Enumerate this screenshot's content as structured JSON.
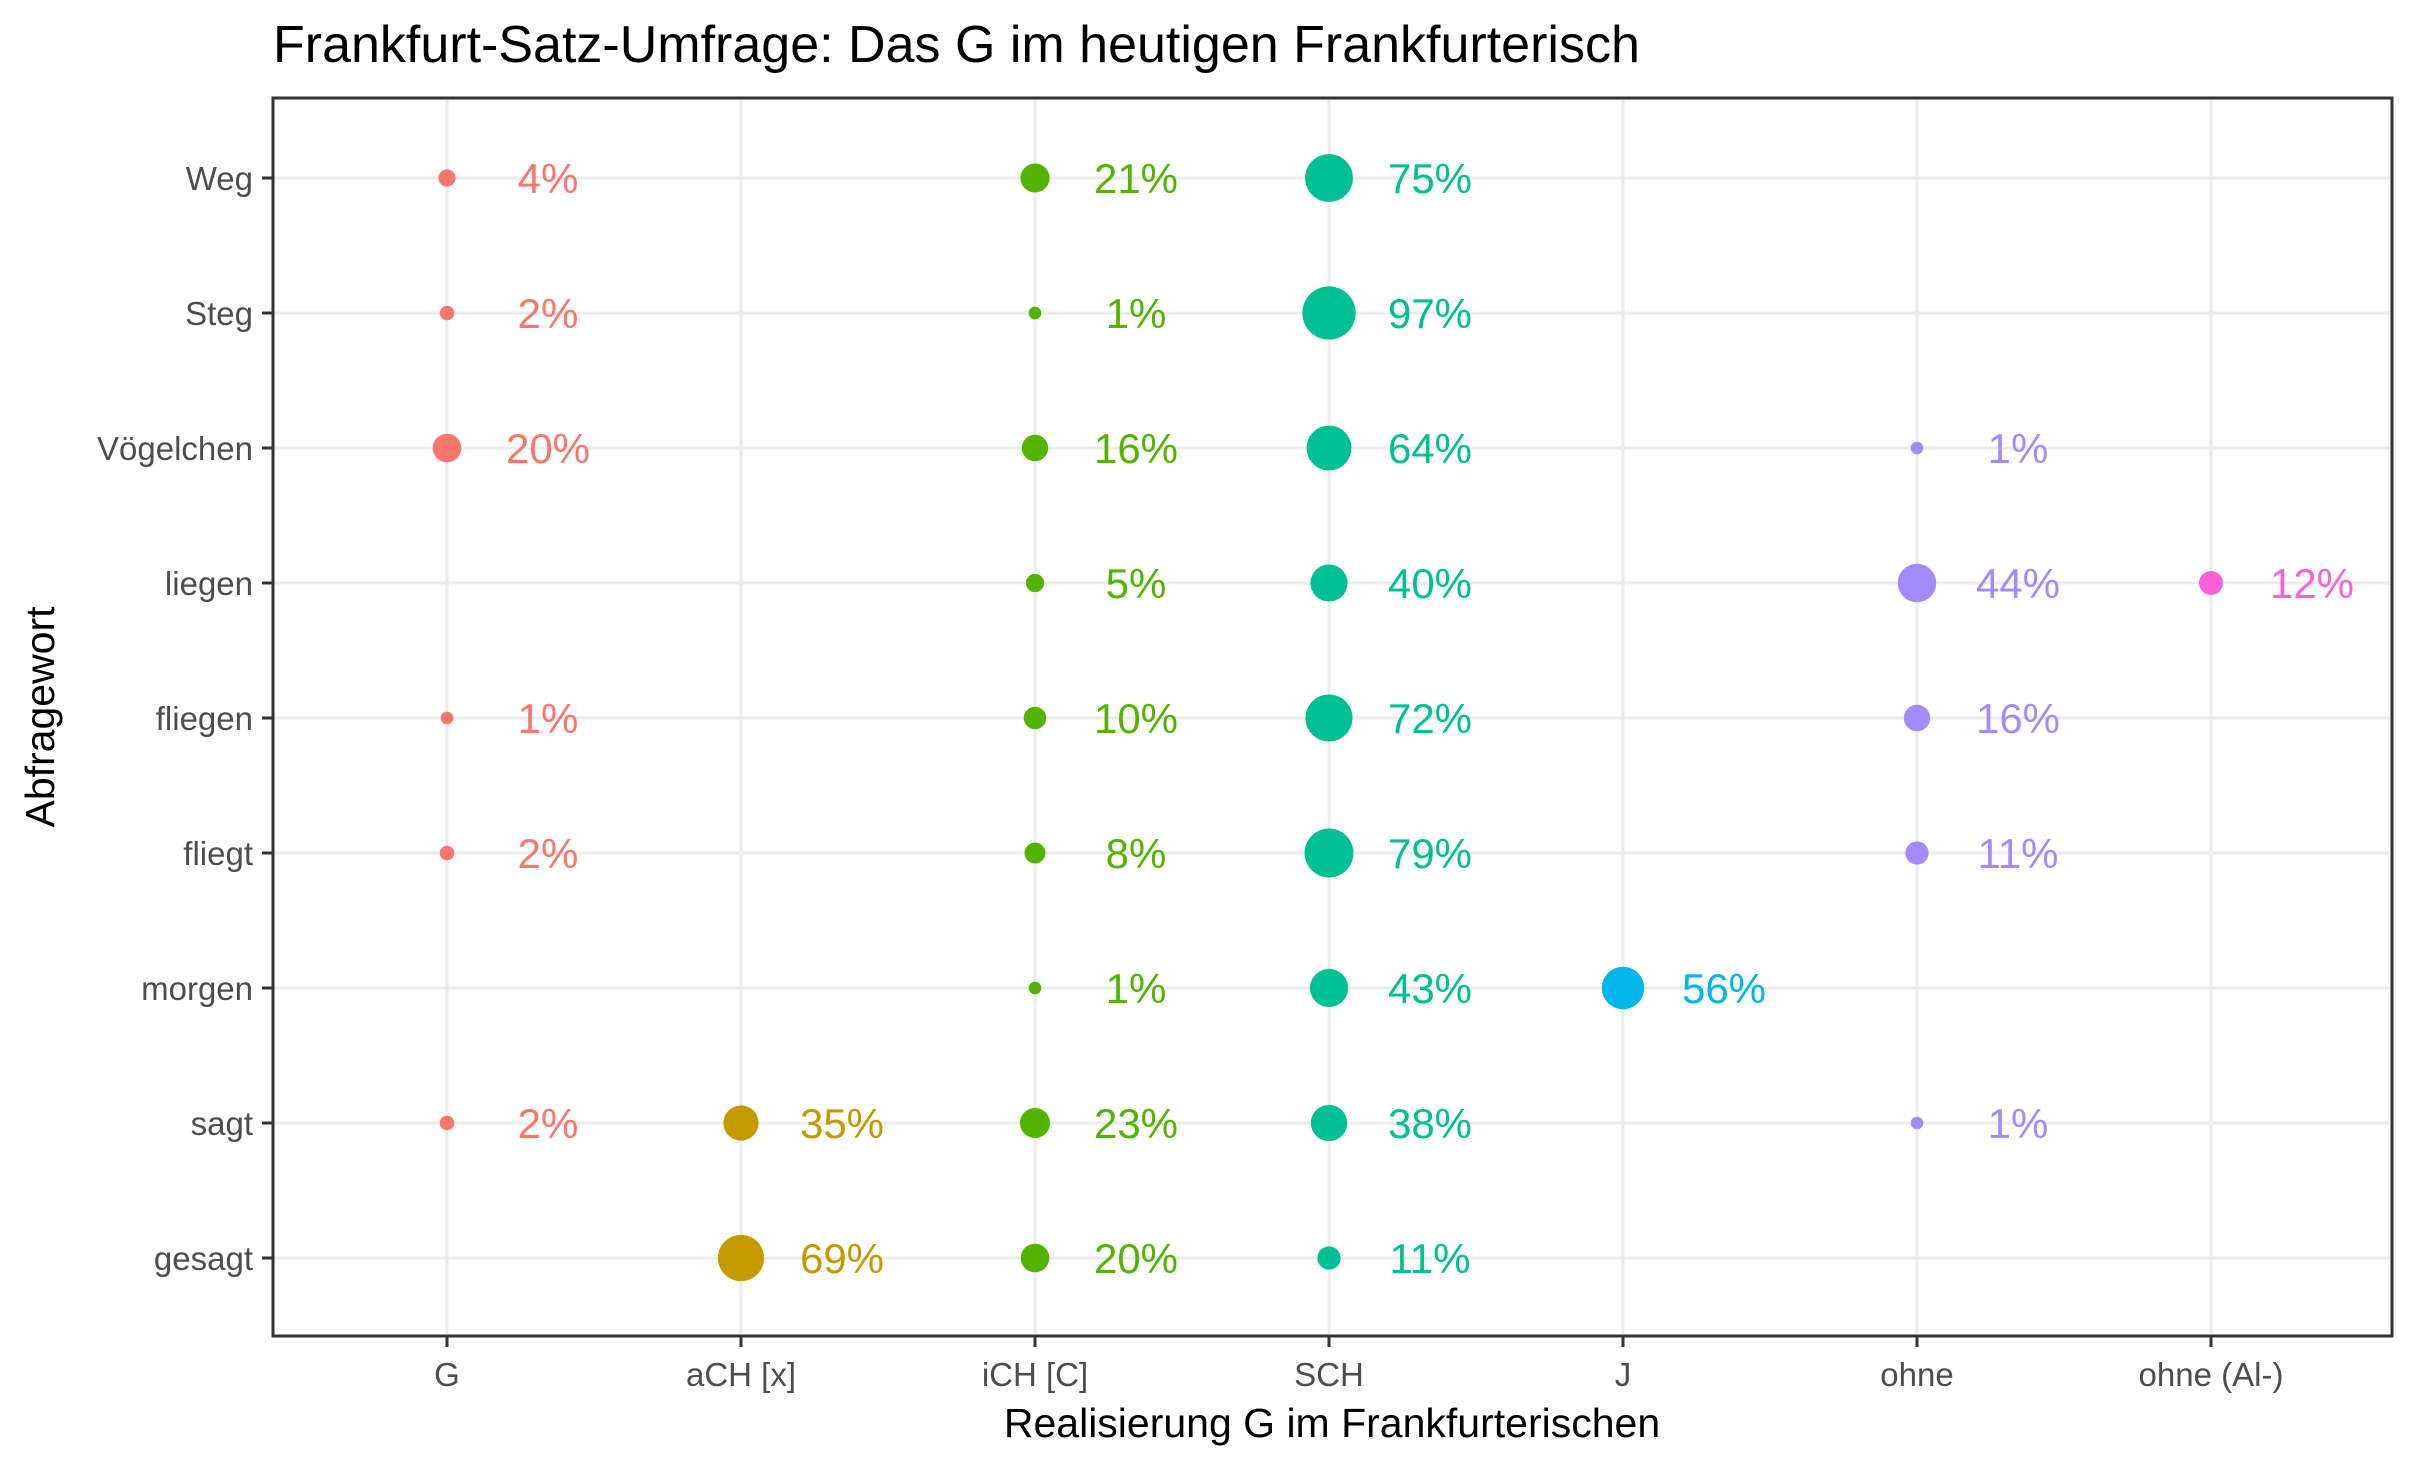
{
  "chart_data": {
    "type": "scatter",
    "title": "Frankfurt-Satz-Umfrage: Das G im heutigen Frankfurterisch",
    "xlabel": "Realisierung G im Frankfurterischen",
    "ylabel": "Abfragewort",
    "grid": true,
    "legend": "none",
    "x_categories": [
      "G",
      "aCH [x]",
      "iCH [C]",
      "SCH",
      "J",
      "ohne",
      "ohne (Al-)"
    ],
    "y_categories": [
      "Weg",
      "Steg",
      "Vögelchen",
      "liegen",
      "fliegen",
      "fliegt",
      "morgen",
      "sagt",
      "gesagt"
    ],
    "colors": {
      "G": "#F8766D",
      "aCH [x]": "#C49A00",
      "iCH [C]": "#53B400",
      "SCH": "#00C094",
      "J": "#00B6EB",
      "ohne": "#A58AFF",
      "ohne (Al-)": "#FB61D7"
    },
    "points": [
      {
        "word": "Weg",
        "realization": "G",
        "value": 4,
        "label": "4%"
      },
      {
        "word": "Weg",
        "realization": "iCH [C]",
        "value": 21,
        "label": "21%"
      },
      {
        "word": "Weg",
        "realization": "SCH",
        "value": 75,
        "label": "75%"
      },
      {
        "word": "Steg",
        "realization": "G",
        "value": 2,
        "label": "2%"
      },
      {
        "word": "Steg",
        "realization": "iCH [C]",
        "value": 1,
        "label": "1%"
      },
      {
        "word": "Steg",
        "realization": "SCH",
        "value": 97,
        "label": "97%"
      },
      {
        "word": "Vögelchen",
        "realization": "G",
        "value": 20,
        "label": "20%"
      },
      {
        "word": "Vögelchen",
        "realization": "iCH [C]",
        "value": 16,
        "label": "16%"
      },
      {
        "word": "Vögelchen",
        "realization": "SCH",
        "value": 64,
        "label": "64%"
      },
      {
        "word": "Vögelchen",
        "realization": "ohne",
        "value": 1,
        "label": "1%"
      },
      {
        "word": "liegen",
        "realization": "iCH [C]",
        "value": 5,
        "label": "5%"
      },
      {
        "word": "liegen",
        "realization": "SCH",
        "value": 40,
        "label": "40%"
      },
      {
        "word": "liegen",
        "realization": "ohne",
        "value": 44,
        "label": "44%"
      },
      {
        "word": "liegen",
        "realization": "ohne (Al-)",
        "value": 12,
        "label": "12%"
      },
      {
        "word": "fliegen",
        "realization": "G",
        "value": 1,
        "label": "1%"
      },
      {
        "word": "fliegen",
        "realization": "iCH [C]",
        "value": 10,
        "label": "10%"
      },
      {
        "word": "fliegen",
        "realization": "SCH",
        "value": 72,
        "label": "72%"
      },
      {
        "word": "fliegen",
        "realization": "ohne",
        "value": 16,
        "label": "16%"
      },
      {
        "word": "fliegt",
        "realization": "G",
        "value": 2,
        "label": "2%"
      },
      {
        "word": "fliegt",
        "realization": "iCH [C]",
        "value": 8,
        "label": "8%"
      },
      {
        "word": "fliegt",
        "realization": "SCH",
        "value": 79,
        "label": "79%"
      },
      {
        "word": "fliegt",
        "realization": "ohne",
        "value": 11,
        "label": "11%"
      },
      {
        "word": "morgen",
        "realization": "iCH [C]",
        "value": 1,
        "label": "1%"
      },
      {
        "word": "morgen",
        "realization": "SCH",
        "value": 43,
        "label": "43%"
      },
      {
        "word": "morgen",
        "realization": "J",
        "value": 56,
        "label": "56%"
      },
      {
        "word": "sagt",
        "realization": "G",
        "value": 2,
        "label": "2%"
      },
      {
        "word": "sagt",
        "realization": "aCH [x]",
        "value": 35,
        "label": "35%"
      },
      {
        "word": "sagt",
        "realization": "iCH [C]",
        "value": 23,
        "label": "23%"
      },
      {
        "word": "sagt",
        "realization": "SCH",
        "value": 38,
        "label": "38%"
      },
      {
        "word": "sagt",
        "realization": "ohne",
        "value": 1,
        "label": "1%"
      },
      {
        "word": "gesagt",
        "realization": "aCH [x]",
        "value": 69,
        "label": "69%"
      },
      {
        "word": "gesagt",
        "realization": "iCH [C]",
        "value": 20,
        "label": "20%"
      },
      {
        "word": "gesagt",
        "realization": "SCH",
        "value": 11,
        "label": "11%"
      }
    ]
  }
}
